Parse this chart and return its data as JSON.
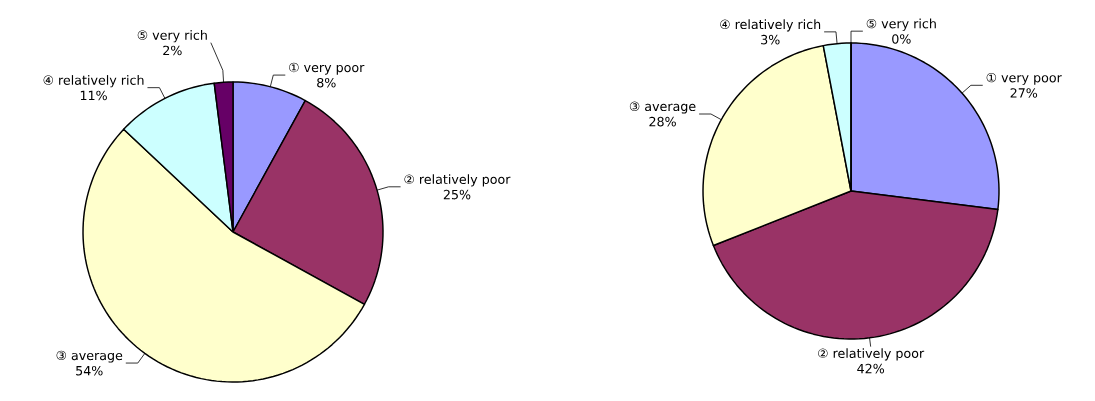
{
  "chart_data": [
    {
      "type": "pie",
      "categories": [
        "① very poor",
        "② relatively poor",
        "③ average",
        "④ relatively rich",
        "⑤ very rich"
      ],
      "values": [
        8,
        25,
        54,
        11,
        2
      ],
      "colors": [
        "#9999ff",
        "#993366",
        "#ffffcc",
        "#ccffff",
        "#660066"
      ],
      "value_labels": [
        "8%",
        "25%",
        "54%",
        "11%",
        "2%"
      ]
    },
    {
      "type": "pie",
      "categories": [
        "① very poor",
        "② relatively poor",
        "③ average",
        "④ relatively rich",
        "⑤ very rich"
      ],
      "values": [
        27,
        42,
        28,
        3,
        0
      ],
      "colors": [
        "#9999ff",
        "#993366",
        "#ffffcc",
        "#ccffff",
        "#660066"
      ],
      "value_labels": [
        "27%",
        "42%",
        "28%",
        "3%",
        "0%"
      ]
    }
  ]
}
